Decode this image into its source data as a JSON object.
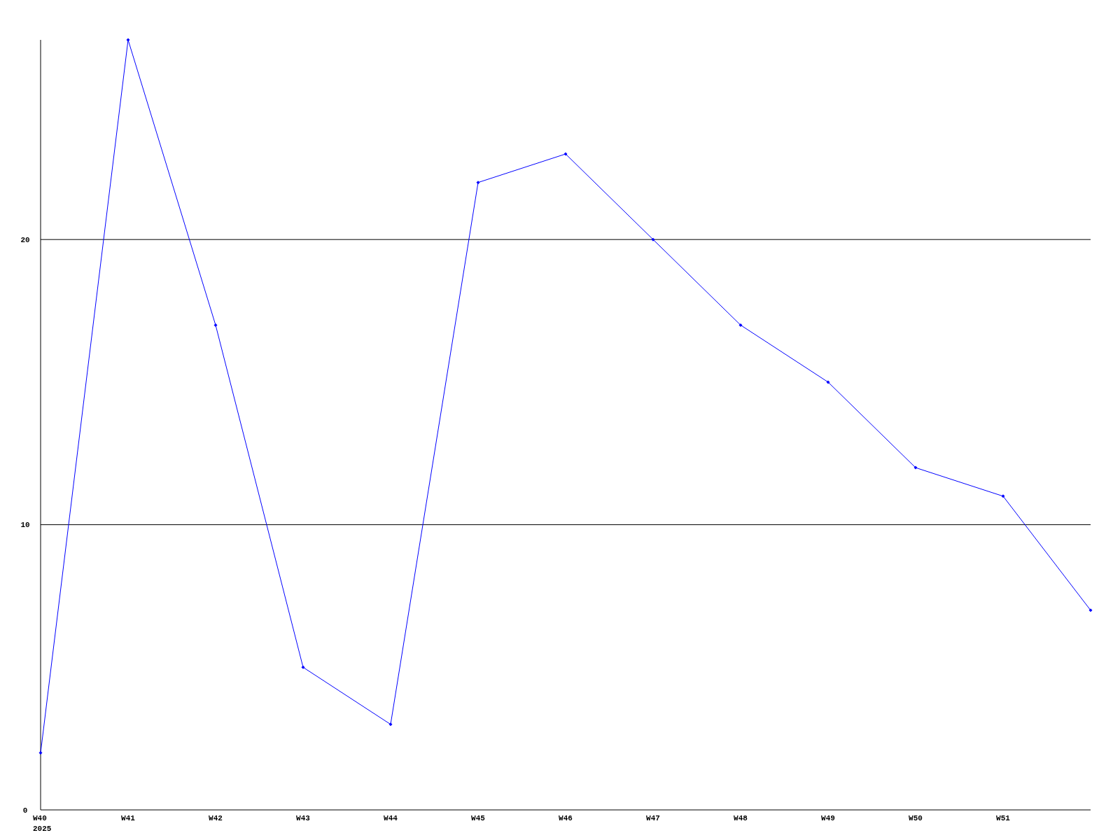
{
  "chart_data": {
    "type": "line",
    "categories": [
      "W40\n2025",
      "W41",
      "W42",
      "W43",
      "W44",
      "W45",
      "W46",
      "W47",
      "W48",
      "W49",
      "W50",
      "W51",
      null
    ],
    "series": [
      {
        "color": "#0000ff",
        "values": [
          2,
          27,
          17,
          5,
          3,
          22,
          23,
          20,
          17,
          15,
          12,
          11,
          7
        ]
      }
    ],
    "ylim": [
      0,
      27
    ],
    "yticks": [
      0,
      10,
      20
    ],
    "grid": "y",
    "marker": "diamond",
    "line_style": "solid"
  }
}
